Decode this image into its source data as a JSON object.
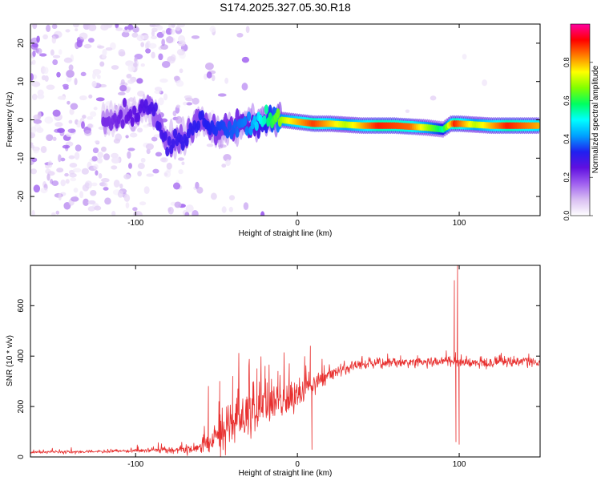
{
  "title": "S174.2025.327.05.30.R18",
  "chart_data": [
    {
      "type": "heatmap",
      "xlabel": "Height of straight line (km)",
      "ylabel": "Frequency (Hz)",
      "xlim": [
        -165,
        150
      ],
      "ylim": [
        -25,
        25
      ],
      "x_ticks": [
        -100,
        0,
        100
      ],
      "y_ticks": [
        -20,
        -10,
        0,
        10,
        20
      ],
      "colorbar": {
        "label": "Normalized spectral amplitude",
        "range": [
          0,
          1
        ],
        "ticks": [
          "0.0",
          "0.2",
          "0.4",
          "0.6",
          "0.8"
        ],
        "colors": [
          "#ffffff",
          "#d9bff2",
          "#a060f0",
          "#6010e0",
          "#2020f0",
          "#00a0ff",
          "#00ffff",
          "#00ff60",
          "#80ff00",
          "#ffff00",
          "#ff8000",
          "#ff0000",
          "#ff00a0"
        ]
      },
      "ridge": [
        {
          "x": -115,
          "y": 0
        },
        {
          "x": -100,
          "y": 1.5
        },
        {
          "x": -90,
          "y": 3
        },
        {
          "x": -80,
          "y": -6
        },
        {
          "x": -70,
          "y": -5
        },
        {
          "x": -60,
          "y": 0
        },
        {
          "x": -50,
          "y": -3
        },
        {
          "x": -40,
          "y": -2
        },
        {
          "x": -30,
          "y": -1
        },
        {
          "x": -20,
          "y": 0
        },
        {
          "x": -10,
          "y": 0
        },
        {
          "x": 0,
          "y": -0.5
        },
        {
          "x": 10,
          "y": -1
        },
        {
          "x": 20,
          "y": -1
        },
        {
          "x": 40,
          "y": -1.5
        },
        {
          "x": 60,
          "y": -1.5
        },
        {
          "x": 80,
          "y": -2
        },
        {
          "x": 90,
          "y": -2.5
        },
        {
          "x": 95,
          "y": -1
        },
        {
          "x": 100,
          "y": -1
        },
        {
          "x": 120,
          "y": -1.5
        },
        {
          "x": 150,
          "y": -1.5
        }
      ],
      "ridge_amplitude": [
        {
          "x": -115,
          "a": 0.22
        },
        {
          "x": -90,
          "a": 0.28
        },
        {
          "x": -60,
          "a": 0.32
        },
        {
          "x": -30,
          "a": 0.4
        },
        {
          "x": -5,
          "a": 0.75
        },
        {
          "x": 10,
          "a": 0.88
        },
        {
          "x": 30,
          "a": 0.7
        },
        {
          "x": 50,
          "a": 0.9
        },
        {
          "x": 70,
          "a": 0.85
        },
        {
          "x": 90,
          "a": 0.55
        },
        {
          "x": 97,
          "a": 0.9
        },
        {
          "x": 110,
          "a": 0.7
        },
        {
          "x": 130,
          "a": 0.9
        },
        {
          "x": 150,
          "a": 0.8
        }
      ]
    },
    {
      "type": "line",
      "xlabel": "Height of straight line (km)",
      "ylabel": "SNR (10 * v/v)",
      "xlim": [
        -165,
        150
      ],
      "ylim": [
        0,
        760
      ],
      "x_ticks": [
        -100,
        0,
        100
      ],
      "y_ticks": [
        0,
        200,
        400,
        600
      ],
      "line_color": "#e8302f",
      "trend": [
        {
          "x": -165,
          "y": 18
        },
        {
          "x": -140,
          "y": 20
        },
        {
          "x": -110,
          "y": 22
        },
        {
          "x": -90,
          "y": 28
        },
        {
          "x": -70,
          "y": 25
        },
        {
          "x": -60,
          "y": 40
        },
        {
          "x": -50,
          "y": 90
        },
        {
          "x": -40,
          "y": 140
        },
        {
          "x": -30,
          "y": 170
        },
        {
          "x": -20,
          "y": 200
        },
        {
          "x": -10,
          "y": 220
        },
        {
          "x": 0,
          "y": 250
        },
        {
          "x": 10,
          "y": 290
        },
        {
          "x": 20,
          "y": 320
        },
        {
          "x": 30,
          "y": 350
        },
        {
          "x": 40,
          "y": 370
        },
        {
          "x": 60,
          "y": 375
        },
        {
          "x": 80,
          "y": 380
        },
        {
          "x": 95,
          "y": 380
        },
        {
          "x": 105,
          "y": 370
        },
        {
          "x": 120,
          "y": 375
        },
        {
          "x": 150,
          "y": 380
        }
      ],
      "noise": [
        {
          "x": -165,
          "n": 8
        },
        {
          "x": -110,
          "n": 10
        },
        {
          "x": -80,
          "n": 18
        },
        {
          "x": -60,
          "n": 30
        },
        {
          "x": -50,
          "n": 120
        },
        {
          "x": -30,
          "n": 160
        },
        {
          "x": -15,
          "n": 130
        },
        {
          "x": 0,
          "n": 80
        },
        {
          "x": 20,
          "n": 45
        },
        {
          "x": 40,
          "n": 30
        },
        {
          "x": 150,
          "n": 30
        }
      ],
      "spikes": [
        {
          "x": -55,
          "y": 280
        },
        {
          "x": -48,
          "y": 300
        },
        {
          "x": -40,
          "y": 320
        },
        {
          "x": -25,
          "y": 350
        },
        {
          "x": -20,
          "y": 360
        },
        {
          "x": -12,
          "y": 340
        },
        {
          "x": -5,
          "y": 370
        },
        {
          "x": 8,
          "y": 440
        },
        {
          "x": 9,
          "y": 30
        },
        {
          "x": 97,
          "y": 700
        },
        {
          "x": 98,
          "y": 60
        },
        {
          "x": 99,
          "y": 760
        },
        {
          "x": 100,
          "y": 50
        }
      ]
    }
  ]
}
